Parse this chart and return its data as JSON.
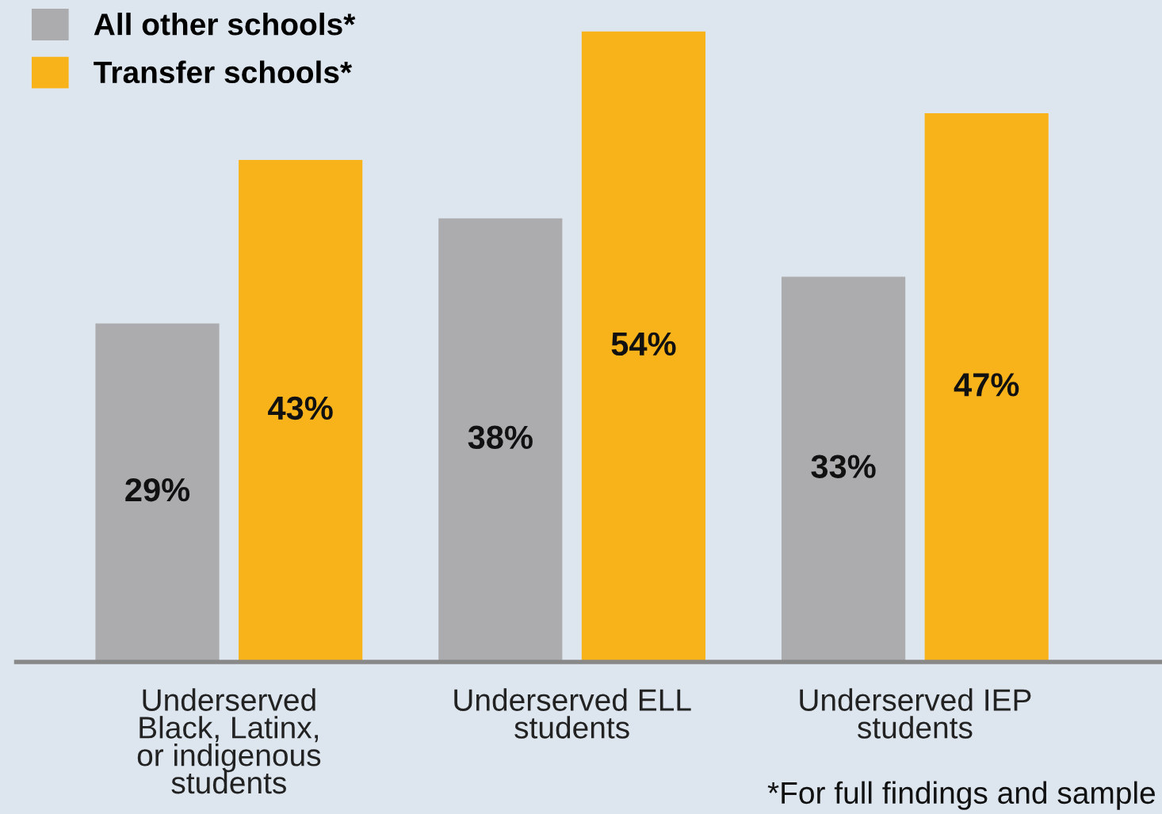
{
  "chart_data": {
    "type": "bar",
    "categories": [
      "Underserved\nBlack, Latinx,\nor indigenous\nstudents",
      "Underserved ELL\nstudents",
      "Underserved IEP\nstudents"
    ],
    "series": [
      {
        "name": "All other schools*",
        "color": "#acacae",
        "values": [
          29,
          38,
          33
        ],
        "value_labels": [
          "29%",
          "38%",
          "33%"
        ]
      },
      {
        "name": "Transfer schools*",
        "color": "#f9b31a",
        "values": [
          43,
          54,
          47
        ],
        "value_labels": [
          "43%",
          "54%",
          "47%"
        ]
      }
    ],
    "legend": "top left",
    "grid": false,
    "annotations": [
      "*For full findings and sample"
    ]
  }
}
